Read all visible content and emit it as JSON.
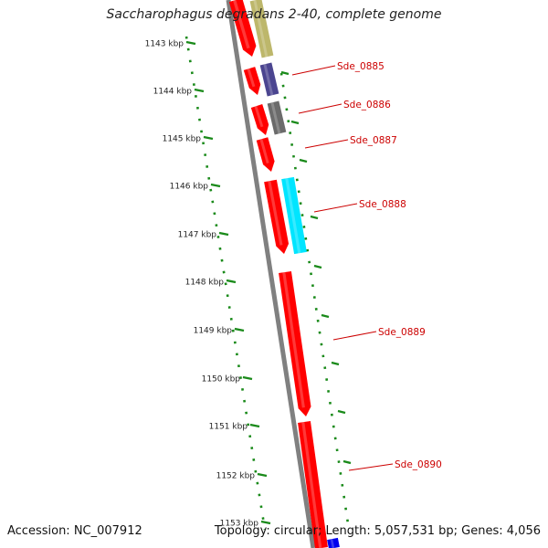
{
  "title": "Saccharophagus degradans 2-40, complete genome",
  "footer": {
    "accession": "Accession: NC_007912",
    "summary": "Topology: circular; Length: 5,057,531 bp; Genes: 4,056"
  },
  "colors": {
    "gene_red": "#ff0000",
    "backbone": "#808080",
    "tick_green": "#1a8a1a",
    "label_red": "#cc0000",
    "khaki": "#bdb76b",
    "slate": "#4b4590",
    "dim_gray": "#6b6b6b",
    "cyan": "#00e5ff",
    "blue": "#0000ee"
  },
  "scale_labels": [
    "1143 kbp",
    "1144 kbp",
    "1145 kbp",
    "1146 kbp",
    "1147 kbp",
    "1148 kbp",
    "1149 kbp",
    "1150 kbp",
    "1151 kbp",
    "1152 kbp",
    "1153 kbp"
  ],
  "gene_labels": [
    "Sde_0885",
    "Sde_0886",
    "Sde_0887",
    "Sde_0888",
    "Sde_0889",
    "Sde_0890"
  ]
}
